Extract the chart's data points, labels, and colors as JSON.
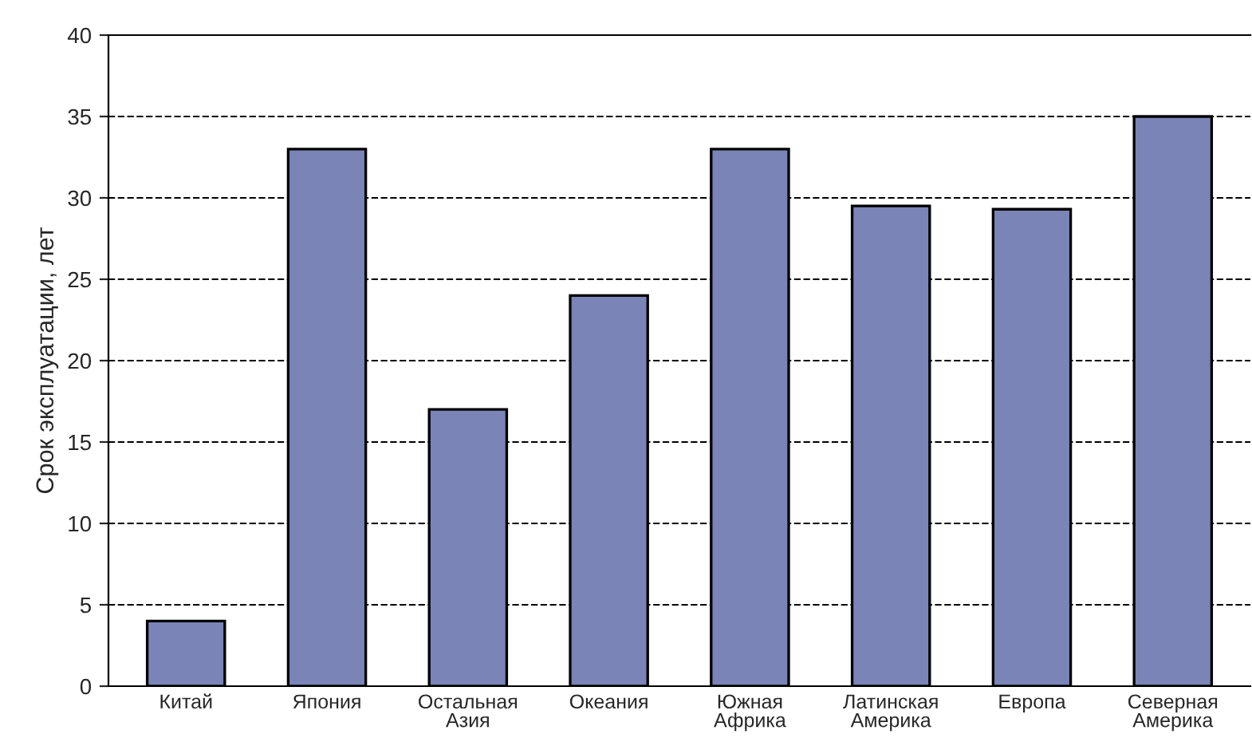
{
  "chart_data": {
    "type": "bar",
    "ylabel": "Срок эксплуатации, лет",
    "categories": [
      "Китай",
      "Япония",
      "Остальная\nАзия",
      "Океания",
      "Южная\nАфрика",
      "Латинская\nАмерика",
      "Европа",
      "Северная\nАмерика"
    ],
    "values": [
      4,
      33,
      17,
      24,
      33,
      29.5,
      29.3,
      35
    ],
    "color": "#7b84b6",
    "ylim": [
      0,
      40
    ],
    "yticks": [
      0,
      5,
      10,
      15,
      20,
      25,
      30,
      35,
      40
    ],
    "grid": "y"
  }
}
